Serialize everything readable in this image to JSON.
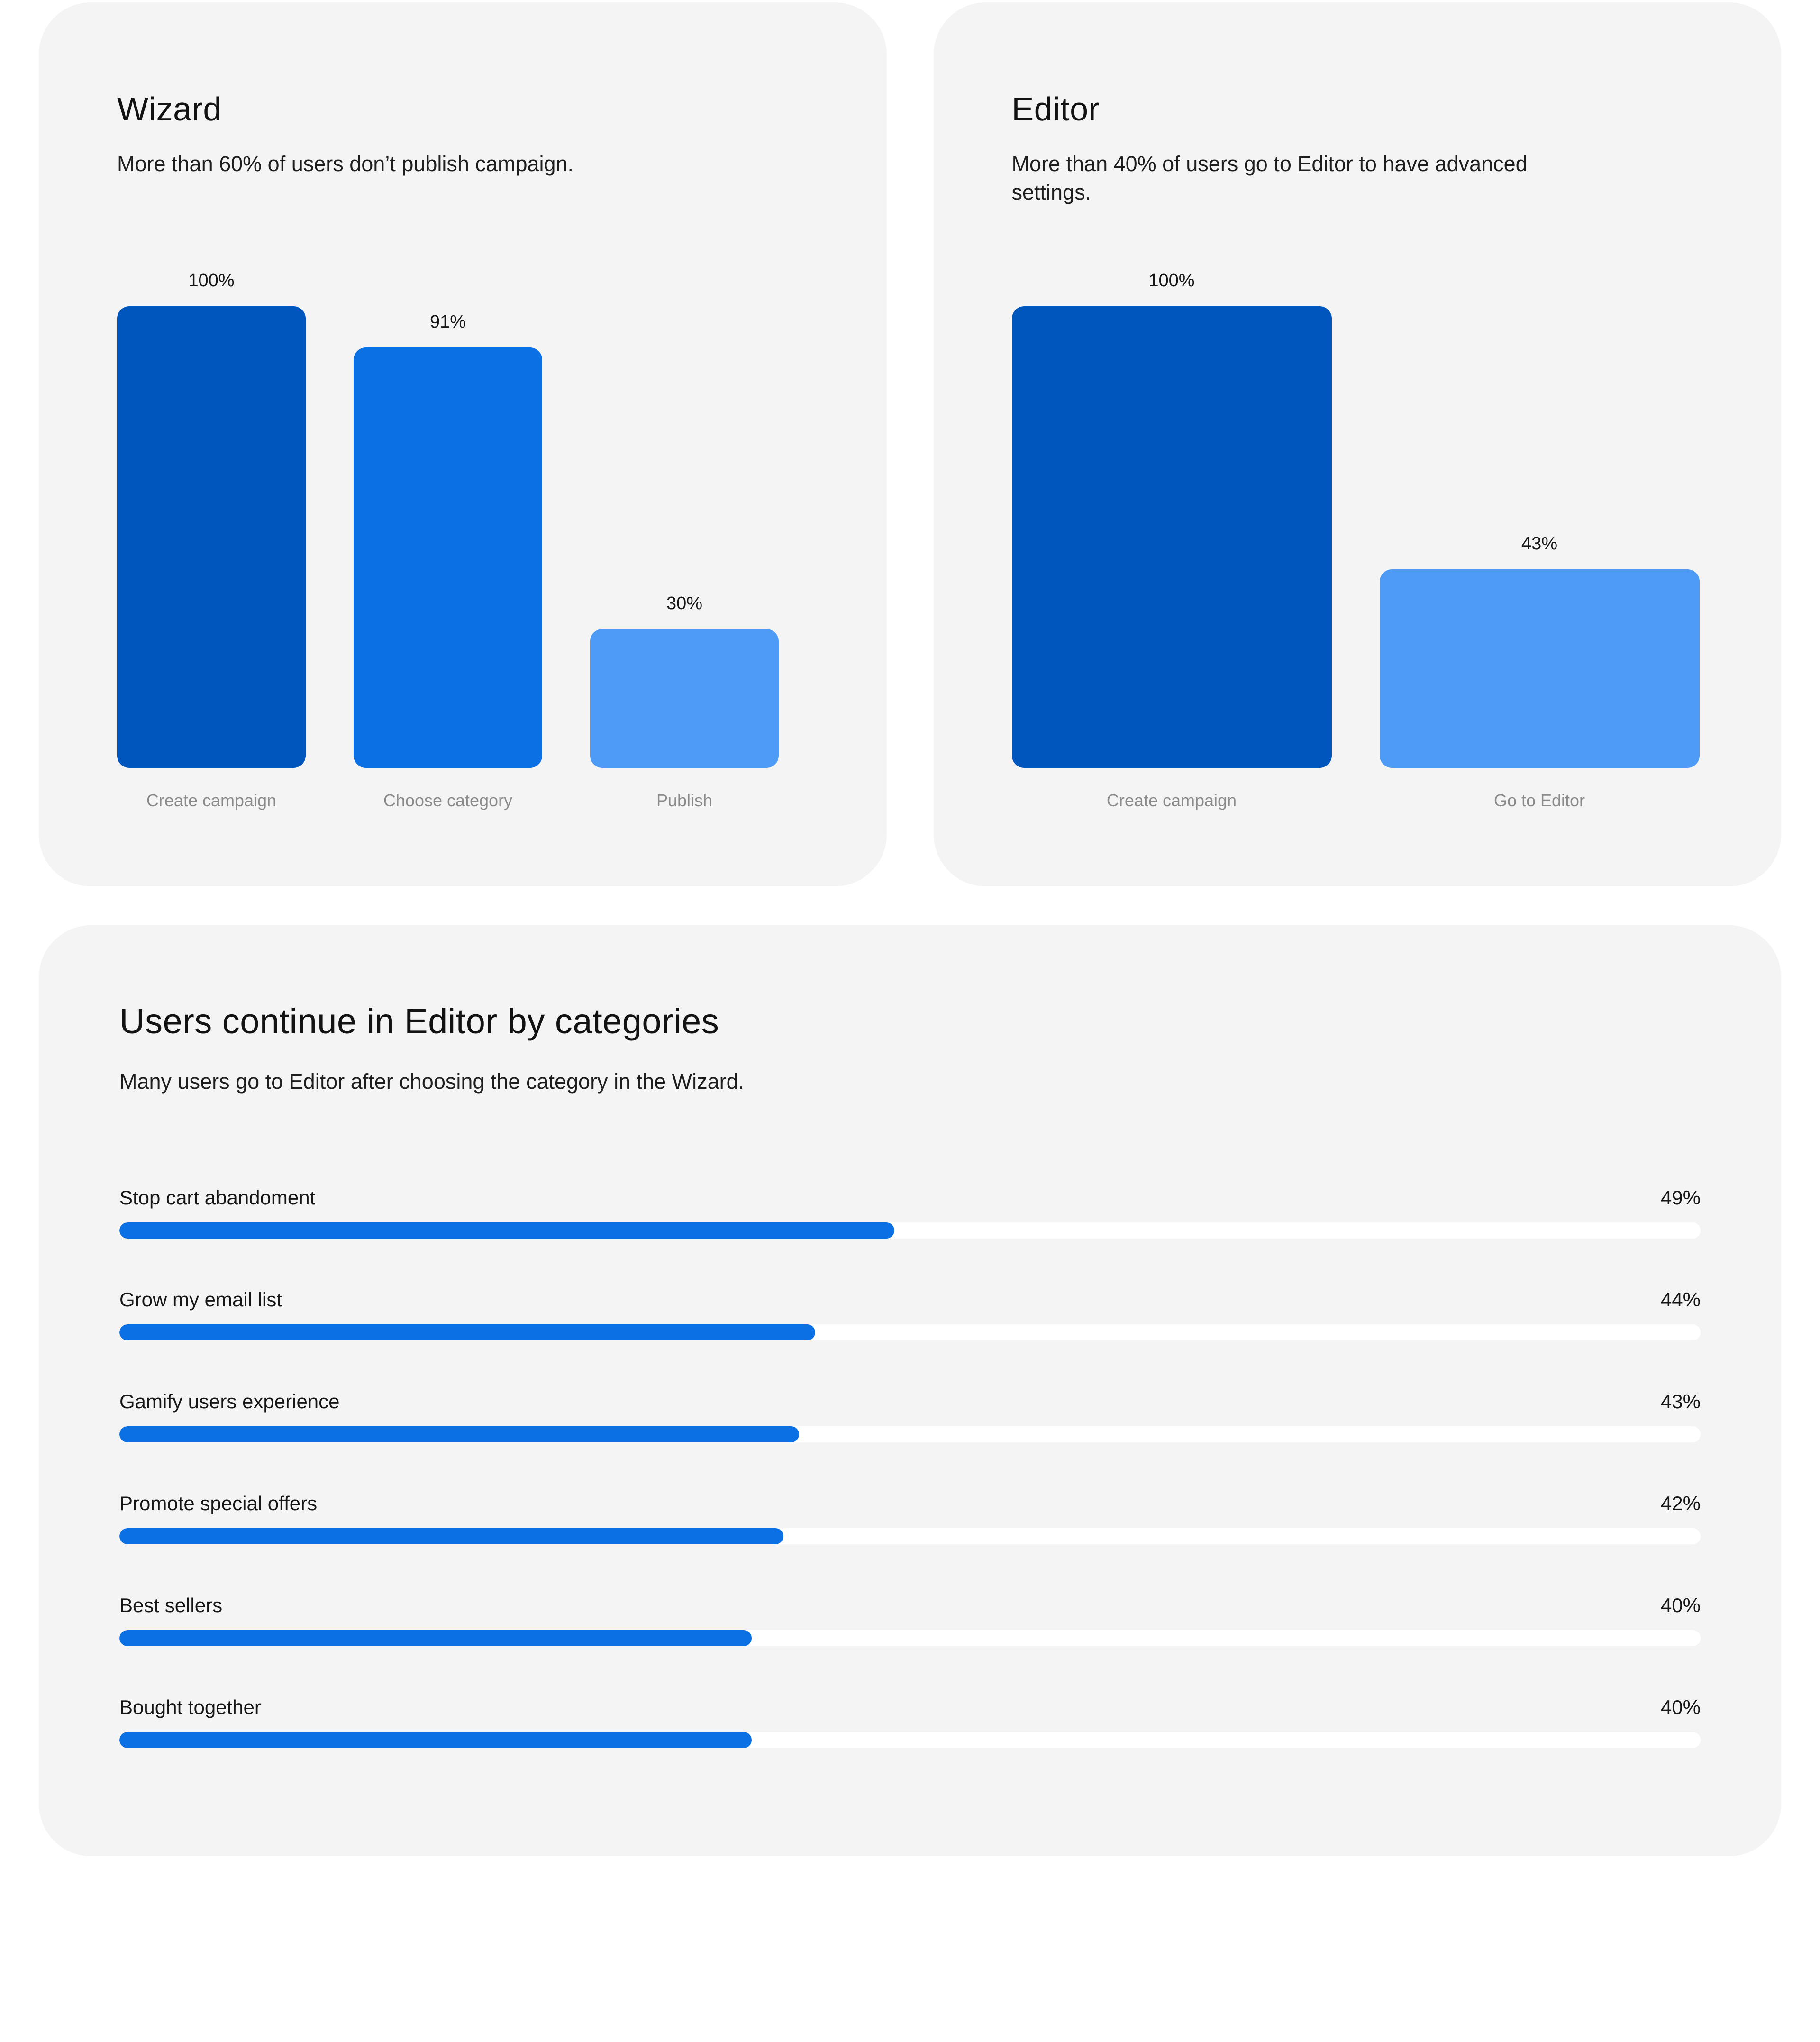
{
  "theme": {
    "card_background": "#F4F4F5",
    "dark_blue": "#0056BC",
    "blue": "#0B70E3",
    "light_blue": "#4D9BF5",
    "track_color": "#FFFFFF",
    "axis_label_color": "#8A8A8A"
  },
  "cards": {
    "wizard": {
      "title": "Wizard",
      "subtitle": "More than 60% of users don’t publish campaign.",
      "bars": [
        {
          "category": "Create campaign",
          "value": 100,
          "value_label": "100%",
          "color": "#0056BC"
        },
        {
          "category": "Choose category",
          "value": 91,
          "value_label": "91%",
          "color": "#0B70E3"
        },
        {
          "category": "Publish",
          "value": 30,
          "value_label": "30%",
          "color": "#4D9BF5"
        }
      ]
    },
    "editor": {
      "title": "Editor",
      "subtitle": "More than 40% of users go to Editor to have advanced settings.",
      "bars": [
        {
          "category": "Create campaign",
          "value": 100,
          "value_label": "100%",
          "color": "#0056BC"
        },
        {
          "category": "Go to Editor",
          "value": 43,
          "value_label": "43%",
          "color": "#4D9BF5"
        }
      ]
    },
    "categories": {
      "title": "Users continue in Editor by categories",
      "subtitle": "Many users go to Editor after choosing the category in the Wizard.",
      "rows": [
        {
          "label": "Stop cart abandoment",
          "value": 49,
          "value_label": "49%"
        },
        {
          "label": "Grow my email list",
          "value": 44,
          "value_label": "44%"
        },
        {
          "label": "Gamify users experience",
          "value": 43,
          "value_label": "43%"
        },
        {
          "label": "Promote special offers",
          "value": 42,
          "value_label": "42%"
        },
        {
          "label": "Best sellers",
          "value": 40,
          "value_label": "40%"
        },
        {
          "label": "Bought together",
          "value": 40,
          "value_label": "40%"
        }
      ]
    }
  },
  "chart_data": [
    {
      "type": "bar",
      "title": "Wizard",
      "subtitle": "More than 60% of users don’t publish campaign.",
      "categories": [
        "Create campaign",
        "Choose category",
        "Publish"
      ],
      "values": [
        100,
        91,
        30
      ],
      "data_labels": [
        "100%",
        "91%",
        "30%"
      ],
      "unit": "%",
      "ylim": [
        0,
        100
      ],
      "grid": false,
      "legend": false,
      "bar_colors": [
        "#0056BC",
        "#0B70E3",
        "#4D9BF5"
      ]
    },
    {
      "type": "bar",
      "title": "Editor",
      "subtitle": "More than 40% of users go to Editor to have advanced settings.",
      "categories": [
        "Create campaign",
        "Go to Editor"
      ],
      "values": [
        100,
        43
      ],
      "data_labels": [
        "100%",
        "43%"
      ],
      "unit": "%",
      "ylim": [
        0,
        100
      ],
      "grid": false,
      "legend": false,
      "bar_colors": [
        "#0056BC",
        "#4D9BF5"
      ]
    },
    {
      "type": "bar",
      "orientation": "horizontal",
      "title": "Users continue in Editor by categories",
      "subtitle": "Many users go to Editor after choosing the category in the Wizard.",
      "categories": [
        "Stop cart abandoment",
        "Grow my email list",
        "Gamify users experience",
        "Promote special offers",
        "Best sellers",
        "Bought together"
      ],
      "values": [
        49,
        44,
        43,
        42,
        40,
        40
      ],
      "data_labels": [
        "49%",
        "44%",
        "43%",
        "42%",
        "40%",
        "40%"
      ],
      "unit": "%",
      "xlim": [
        0,
        100
      ],
      "grid": false,
      "legend": false,
      "bar_color": "#0B70E3"
    }
  ]
}
